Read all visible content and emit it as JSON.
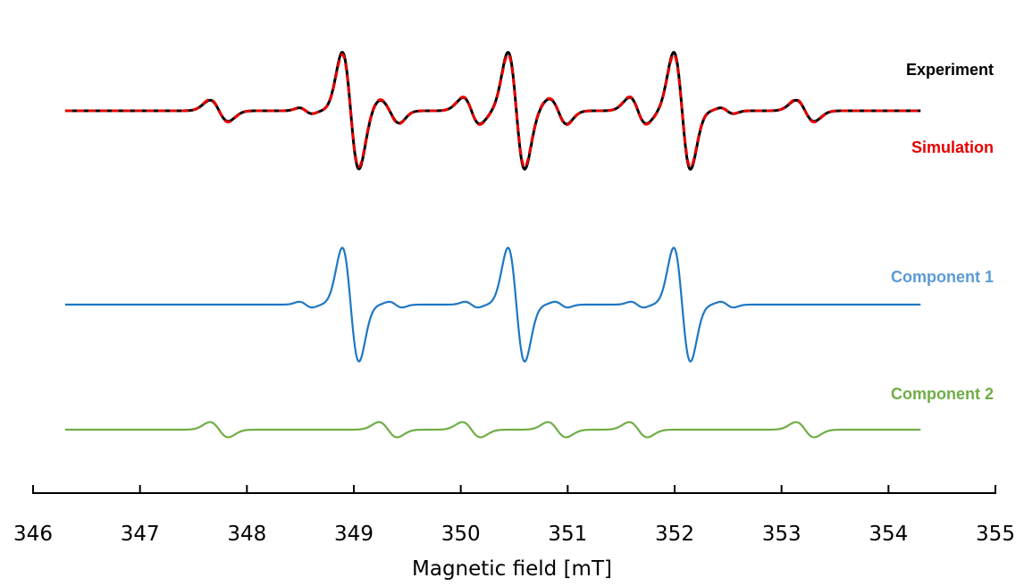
{
  "chart_data": {
    "type": "line",
    "xlabel": "Magnetic field [mT]",
    "ylabel": "",
    "xlim": [
      346,
      355
    ],
    "x_ticks": [
      "346",
      "347",
      "348",
      "349",
      "350",
      "351",
      "352",
      "353",
      "354",
      "355"
    ],
    "grid": false,
    "x_range": [
      346.3,
      354.3
    ],
    "centers_main": [
      348.97,
      350.52,
      352.07
    ],
    "centers_minor": [
      347.74,
      349.32,
      350.1,
      350.9,
      351.66,
      353.22
    ],
    "series": [
      {
        "name": "Experiment",
        "color": "#000000",
        "dash": "solid"
      },
      {
        "name": "Simulation",
        "color": "#e60000",
        "dash": "dashed"
      },
      {
        "name": "Component 1",
        "color": "#1f77c4",
        "dash": "solid"
      },
      {
        "name": "Component 2",
        "color": "#70ad47",
        "dash": "solid"
      }
    ],
    "legend_placement": "right, next to each trace"
  }
}
